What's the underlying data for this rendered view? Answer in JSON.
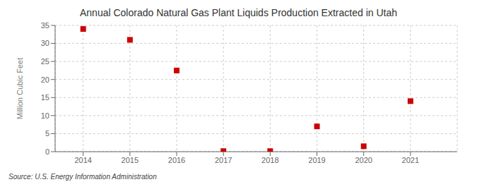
{
  "chart_data": {
    "type": "scatter",
    "title": "Annual Colorado Natural Gas Plant Liquids Production Extracted in Utah",
    "ylabel": "Million Cubic Feet",
    "annotations": [
      "Source: U.S. Energy Information Administration"
    ],
    "x": [
      2014,
      2015,
      2016,
      2017,
      2018,
      2019,
      2020,
      2021
    ],
    "values": [
      34,
      31,
      22.5,
      0.15,
      0.15,
      7,
      1.5,
      14
    ],
    "xlim": [
      2013.4,
      2022.0
    ],
    "xticks": [
      2014,
      2015,
      2016,
      2017,
      2018,
      2019,
      2020,
      2021
    ],
    "ylim": [
      0,
      35
    ],
    "yticks": [
      0,
      5,
      10,
      15,
      20,
      25,
      30,
      35
    ],
    "grid": true,
    "color": "#cc0000",
    "marker": "square"
  }
}
